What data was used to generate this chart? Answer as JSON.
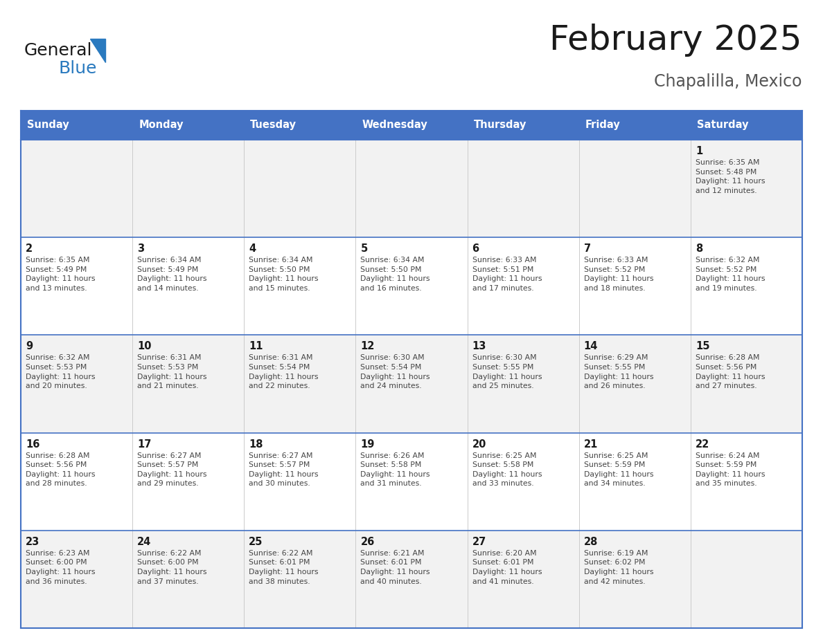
{
  "title": "February 2025",
  "subtitle": "Chapalilla, Mexico",
  "header_bg": "#4472C4",
  "header_text": "#FFFFFF",
  "day_names": [
    "Sunday",
    "Monday",
    "Tuesday",
    "Wednesday",
    "Thursday",
    "Friday",
    "Saturday"
  ],
  "row_bg_even": "#F2F2F2",
  "row_bg_odd": "#FFFFFF",
  "border_color": "#4472C4",
  "text_color": "#333333",
  "date_color": "#1a1a1a",
  "info_color": "#444444",
  "calendar": [
    [
      null,
      null,
      null,
      null,
      null,
      null,
      {
        "day": 1,
        "sunrise": "6:35 AM",
        "sunset": "5:48 PM",
        "daylight": "11 hours\nand 12 minutes."
      }
    ],
    [
      {
        "day": 2,
        "sunrise": "6:35 AM",
        "sunset": "5:49 PM",
        "daylight": "11 hours\nand 13 minutes."
      },
      {
        "day": 3,
        "sunrise": "6:34 AM",
        "sunset": "5:49 PM",
        "daylight": "11 hours\nand 14 minutes."
      },
      {
        "day": 4,
        "sunrise": "6:34 AM",
        "sunset": "5:50 PM",
        "daylight": "11 hours\nand 15 minutes."
      },
      {
        "day": 5,
        "sunrise": "6:34 AM",
        "sunset": "5:50 PM",
        "daylight": "11 hours\nand 16 minutes."
      },
      {
        "day": 6,
        "sunrise": "6:33 AM",
        "sunset": "5:51 PM",
        "daylight": "11 hours\nand 17 minutes."
      },
      {
        "day": 7,
        "sunrise": "6:33 AM",
        "sunset": "5:52 PM",
        "daylight": "11 hours\nand 18 minutes."
      },
      {
        "day": 8,
        "sunrise": "6:32 AM",
        "sunset": "5:52 PM",
        "daylight": "11 hours\nand 19 minutes."
      }
    ],
    [
      {
        "day": 9,
        "sunrise": "6:32 AM",
        "sunset": "5:53 PM",
        "daylight": "11 hours\nand 20 minutes."
      },
      {
        "day": 10,
        "sunrise": "6:31 AM",
        "sunset": "5:53 PM",
        "daylight": "11 hours\nand 21 minutes."
      },
      {
        "day": 11,
        "sunrise": "6:31 AM",
        "sunset": "5:54 PM",
        "daylight": "11 hours\nand 22 minutes."
      },
      {
        "day": 12,
        "sunrise": "6:30 AM",
        "sunset": "5:54 PM",
        "daylight": "11 hours\nand 24 minutes."
      },
      {
        "day": 13,
        "sunrise": "6:30 AM",
        "sunset": "5:55 PM",
        "daylight": "11 hours\nand 25 minutes."
      },
      {
        "day": 14,
        "sunrise": "6:29 AM",
        "sunset": "5:55 PM",
        "daylight": "11 hours\nand 26 minutes."
      },
      {
        "day": 15,
        "sunrise": "6:28 AM",
        "sunset": "5:56 PM",
        "daylight": "11 hours\nand 27 minutes."
      }
    ],
    [
      {
        "day": 16,
        "sunrise": "6:28 AM",
        "sunset": "5:56 PM",
        "daylight": "11 hours\nand 28 minutes."
      },
      {
        "day": 17,
        "sunrise": "6:27 AM",
        "sunset": "5:57 PM",
        "daylight": "11 hours\nand 29 minutes."
      },
      {
        "day": 18,
        "sunrise": "6:27 AM",
        "sunset": "5:57 PM",
        "daylight": "11 hours\nand 30 minutes."
      },
      {
        "day": 19,
        "sunrise": "6:26 AM",
        "sunset": "5:58 PM",
        "daylight": "11 hours\nand 31 minutes."
      },
      {
        "day": 20,
        "sunrise": "6:25 AM",
        "sunset": "5:58 PM",
        "daylight": "11 hours\nand 33 minutes."
      },
      {
        "day": 21,
        "sunrise": "6:25 AM",
        "sunset": "5:59 PM",
        "daylight": "11 hours\nand 34 minutes."
      },
      {
        "day": 22,
        "sunrise": "6:24 AM",
        "sunset": "5:59 PM",
        "daylight": "11 hours\nand 35 minutes."
      }
    ],
    [
      {
        "day": 23,
        "sunrise": "6:23 AM",
        "sunset": "6:00 PM",
        "daylight": "11 hours\nand 36 minutes."
      },
      {
        "day": 24,
        "sunrise": "6:22 AM",
        "sunset": "6:00 PM",
        "daylight": "11 hours\nand 37 minutes."
      },
      {
        "day": 25,
        "sunrise": "6:22 AM",
        "sunset": "6:01 PM",
        "daylight": "11 hours\nand 38 minutes."
      },
      {
        "day": 26,
        "sunrise": "6:21 AM",
        "sunset": "6:01 PM",
        "daylight": "11 hours\nand 40 minutes."
      },
      {
        "day": 27,
        "sunrise": "6:20 AM",
        "sunset": "6:01 PM",
        "daylight": "11 hours\nand 41 minutes."
      },
      {
        "day": 28,
        "sunrise": "6:19 AM",
        "sunset": "6:02 PM",
        "daylight": "11 hours\nand 42 minutes."
      },
      null
    ]
  ],
  "logo_text_general": "General",
  "logo_text_blue": "Blue",
  "logo_color_general": "#1a1a1a",
  "logo_color_blue": "#2a7abf",
  "logo_triangle_color": "#2a7abf",
  "fig_width": 11.88,
  "fig_height": 9.18,
  "dpi": 100
}
